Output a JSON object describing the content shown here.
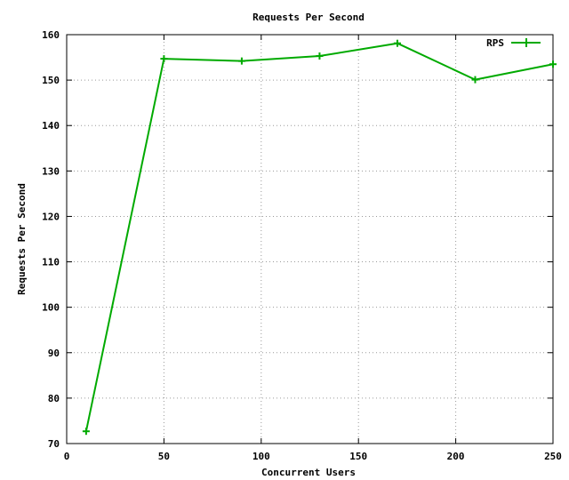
{
  "chart_data": {
    "type": "line",
    "title": "Requests Per Second",
    "xlabel": "Concurrent Users",
    "ylabel": "Requests Per Second",
    "xlim": [
      0,
      250
    ],
    "ylim": [
      70,
      160
    ],
    "xticks": [
      0,
      50,
      100,
      150,
      200,
      250
    ],
    "yticks": [
      70,
      80,
      90,
      100,
      110,
      120,
      130,
      140,
      150,
      160
    ],
    "grid": true,
    "legend_position": "top-right",
    "series": [
      {
        "name": "RPS",
        "color": "#00aa00",
        "marker": "plus",
        "x": [
          10,
          50,
          90,
          130,
          170,
          210,
          250
        ],
        "y": [
          72.7,
          154.7,
          154.2,
          155.3,
          158.1,
          150.1,
          153.5
        ]
      }
    ]
  }
}
